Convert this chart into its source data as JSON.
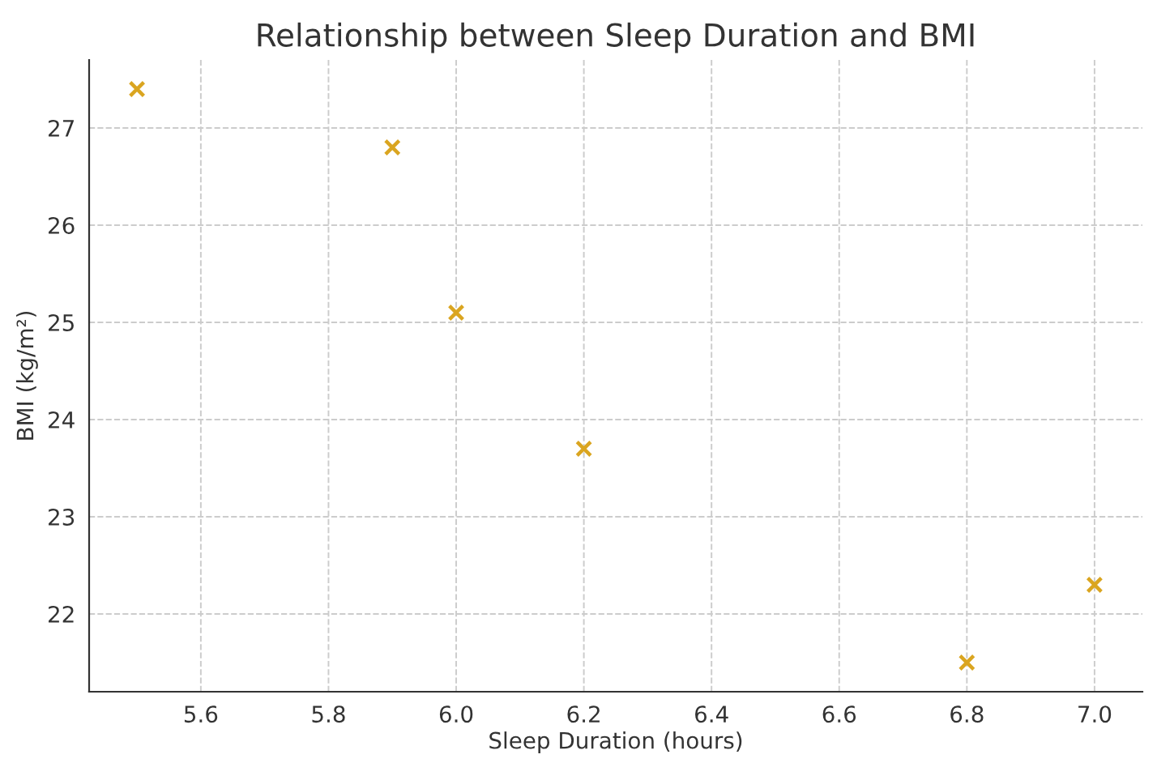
{
  "chart_data": {
    "type": "scatter",
    "title": "Relationship between Sleep Duration and BMI",
    "xlabel": "Sleep Duration (hours)",
    "ylabel": "BMI (kg/m²)",
    "series": [
      {
        "x": [
          5.5,
          5.9,
          6.0,
          6.2,
          6.8,
          7.0
        ],
        "values": [
          27.4,
          26.8,
          25.1,
          23.7,
          21.5,
          22.3
        ],
        "color": "#daa520"
      }
    ],
    "xlim": [
      5.425,
      7.075
    ],
    "ylim": [
      21.2,
      27.7
    ],
    "xticks": [
      {
        "value": 5.6,
        "label": "5.6"
      },
      {
        "value": 5.8,
        "label": "5.8"
      },
      {
        "value": 6.0,
        "label": "6.0"
      },
      {
        "value": 6.2,
        "label": "6.2"
      },
      {
        "value": 6.4,
        "label": "6.4"
      },
      {
        "value": 6.6,
        "label": "6.6"
      },
      {
        "value": 6.8,
        "label": "6.8"
      },
      {
        "value": 7.0,
        "label": "7.0"
      }
    ],
    "yticks": [
      22,
      23,
      24,
      25,
      26,
      27
    ],
    "grid": true,
    "marker": "cross"
  }
}
